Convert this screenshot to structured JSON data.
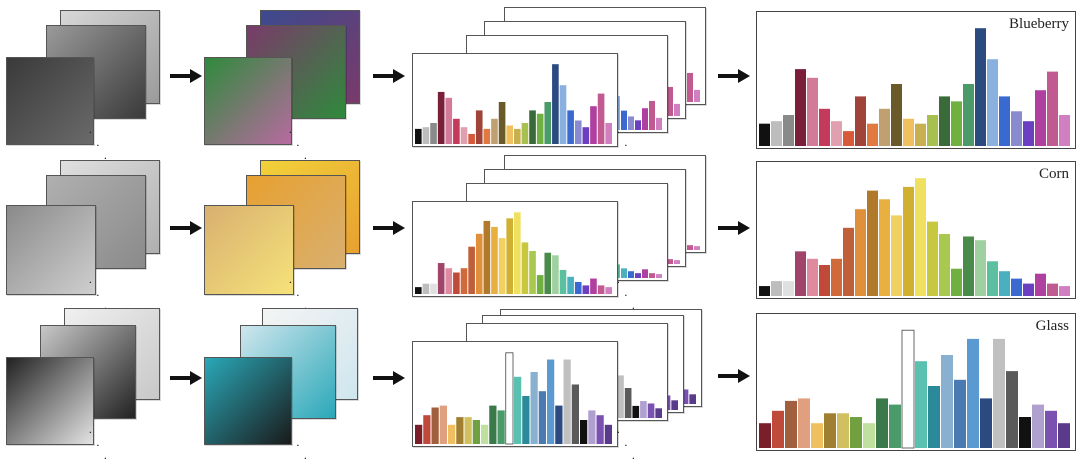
{
  "rows": [
    {
      "id": "blueberry",
      "label": "Blueberry",
      "gray_colors": [
        "#d8d8d8",
        "#9a9a9a",
        "#3a3a3a",
        "#6a6a6a"
      ],
      "color_colors": [
        "#3b4a8f",
        "#7a3a6a",
        "#2f8a3c",
        "#b86aa0"
      ],
      "hist": [
        {
          "v": 0.18,
          "c": "#111111"
        },
        {
          "v": 0.2,
          "c": "#bdbdbd"
        },
        {
          "v": 0.25,
          "c": "#8a8a8a"
        },
        {
          "v": 0.62,
          "c": "#7a1f3a"
        },
        {
          "v": 0.55,
          "c": "#d27a97"
        },
        {
          "v": 0.3,
          "c": "#c43a5a"
        },
        {
          "v": 0.2,
          "c": "#e0a0b0"
        },
        {
          "v": 0.12,
          "c": "#d65a3a"
        },
        {
          "v": 0.4,
          "c": "#a0443a"
        },
        {
          "v": 0.18,
          "c": "#e07a40"
        },
        {
          "v": 0.3,
          "c": "#c0a070"
        },
        {
          "v": 0.5,
          "c": "#6a5a2a"
        },
        {
          "v": 0.22,
          "c": "#f0c060"
        },
        {
          "v": 0.18,
          "c": "#c8b050"
        },
        {
          "v": 0.25,
          "c": "#a8c050"
        },
        {
          "v": 0.4,
          "c": "#3a6a3a"
        },
        {
          "v": 0.36,
          "c": "#70b040"
        },
        {
          "v": 0.5,
          "c": "#4a9a6a"
        },
        {
          "v": 0.95,
          "c": "#2a4a80"
        },
        {
          "v": 0.7,
          "c": "#8ab0e0"
        },
        {
          "v": 0.4,
          "c": "#3a6ad0"
        },
        {
          "v": 0.28,
          "c": "#8a8ad0"
        },
        {
          "v": 0.2,
          "c": "#6a40c0"
        },
        {
          "v": 0.45,
          "c": "#b040a0"
        },
        {
          "v": 0.6,
          "c": "#c05a90"
        },
        {
          "v": 0.25,
          "c": "#d080c0"
        }
      ]
    },
    {
      "id": "corn",
      "label": "Corn",
      "gray_colors": [
        "#e0e0e0",
        "#b0b0b0",
        "#8a8a8a",
        "#cfcfcf"
      ],
      "color_colors": [
        "#f2d23a",
        "#e8a030",
        "#d8b070",
        "#f6e27a"
      ],
      "hist": [
        {
          "v": 0.08,
          "c": "#111111"
        },
        {
          "v": 0.12,
          "c": "#bdbdbd"
        },
        {
          "v": 0.12,
          "c": "#e0e0e0"
        },
        {
          "v": 0.36,
          "c": "#a0446a"
        },
        {
          "v": 0.3,
          "c": "#e08aa0"
        },
        {
          "v": 0.25,
          "c": "#c04a3a"
        },
        {
          "v": 0.3,
          "c": "#d06a3a"
        },
        {
          "v": 0.55,
          "c": "#c0603a"
        },
        {
          "v": 0.7,
          "c": "#e0903a"
        },
        {
          "v": 0.85,
          "c": "#b07a2a"
        },
        {
          "v": 0.78,
          "c": "#e8b040"
        },
        {
          "v": 0.65,
          "c": "#f0d060"
        },
        {
          "v": 0.88,
          "c": "#d0b030"
        },
        {
          "v": 0.95,
          "c": "#f0e060"
        },
        {
          "v": 0.6,
          "c": "#c8c840"
        },
        {
          "v": 0.5,
          "c": "#a8c850"
        },
        {
          "v": 0.22,
          "c": "#70b040"
        },
        {
          "v": 0.48,
          "c": "#4a8a4a"
        },
        {
          "v": 0.45,
          "c": "#a0d0a0"
        },
        {
          "v": 0.28,
          "c": "#5ac0a0"
        },
        {
          "v": 0.2,
          "c": "#4ab0c0"
        },
        {
          "v": 0.14,
          "c": "#3a6ad0"
        },
        {
          "v": 0.1,
          "c": "#6a40c0"
        },
        {
          "v": 0.18,
          "c": "#b040a0"
        },
        {
          "v": 0.1,
          "c": "#c05a90"
        },
        {
          "v": 0.08,
          "c": "#d080c0"
        }
      ]
    },
    {
      "id": "glass",
      "label": "Glass",
      "gray_colors": [
        "#f0f0f0",
        "#c8c8c8",
        "#222222",
        "#e4e4e4"
      ],
      "color_colors": [
        "#f4f4f4",
        "#cfe6ee",
        "#2aa8b8",
        "#1a1a1a"
      ],
      "hist": [
        {
          "v": 0.2,
          "c": "#7a1f2a"
        },
        {
          "v": 0.3,
          "c": "#c04a3a"
        },
        {
          "v": 0.38,
          "c": "#a06040"
        },
        {
          "v": 0.4,
          "c": "#e0a080"
        },
        {
          "v": 0.2,
          "c": "#f0c060"
        },
        {
          "v": 0.28,
          "c": "#a08030"
        },
        {
          "v": 0.28,
          "c": "#d0c060"
        },
        {
          "v": 0.25,
          "c": "#70a040"
        },
        {
          "v": 0.2,
          "c": "#c0e0a0"
        },
        {
          "v": 0.4,
          "c": "#3a7a4a"
        },
        {
          "v": 0.35,
          "c": "#4a9a6a"
        },
        {
          "v": 0.95,
          "c": "#ffffff"
        },
        {
          "v": 0.7,
          "c": "#5ac0b0"
        },
        {
          "v": 0.5,
          "c": "#2a8a9a"
        },
        {
          "v": 0.75,
          "c": "#8ab0d0"
        },
        {
          "v": 0.55,
          "c": "#4a7ab0"
        },
        {
          "v": 0.88,
          "c": "#5a9ad0"
        },
        {
          "v": 0.4,
          "c": "#2a4a80"
        },
        {
          "v": 0.88,
          "c": "#c0c0c0"
        },
        {
          "v": 0.62,
          "c": "#5a5a5a"
        },
        {
          "v": 0.25,
          "c": "#111111"
        },
        {
          "v": 0.35,
          "c": "#b0a0d0"
        },
        {
          "v": 0.3,
          "c": "#7a50b0"
        },
        {
          "v": 0.2,
          "c": "#5a3a8a"
        }
      ]
    }
  ],
  "ellipsis_text": "· · ·"
}
